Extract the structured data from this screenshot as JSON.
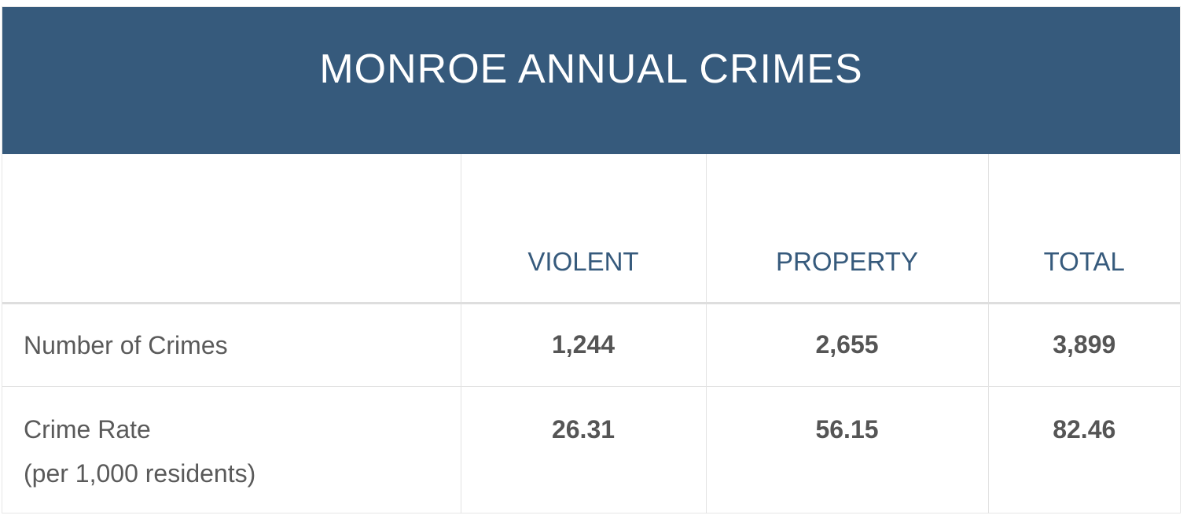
{
  "chart_data": {
    "type": "table",
    "title": "MONROE ANNUAL CRIMES",
    "columns": [
      "",
      "VIOLENT",
      "PROPERTY",
      "TOTAL"
    ],
    "rows": [
      {
        "label": "Number of Crimes",
        "sublabel": "",
        "values": [
          "1,244",
          "2,655",
          "3,899"
        ]
      },
      {
        "label": "Crime Rate",
        "sublabel": "(per 1,000 residents)",
        "values": [
          "26.31",
          "56.15",
          "82.46"
        ]
      }
    ]
  },
  "colors": {
    "header_background": "#365a7c",
    "column_header_text": "#365a7c",
    "body_text": "#555555",
    "grid_lines": "#e3e3e3"
  }
}
